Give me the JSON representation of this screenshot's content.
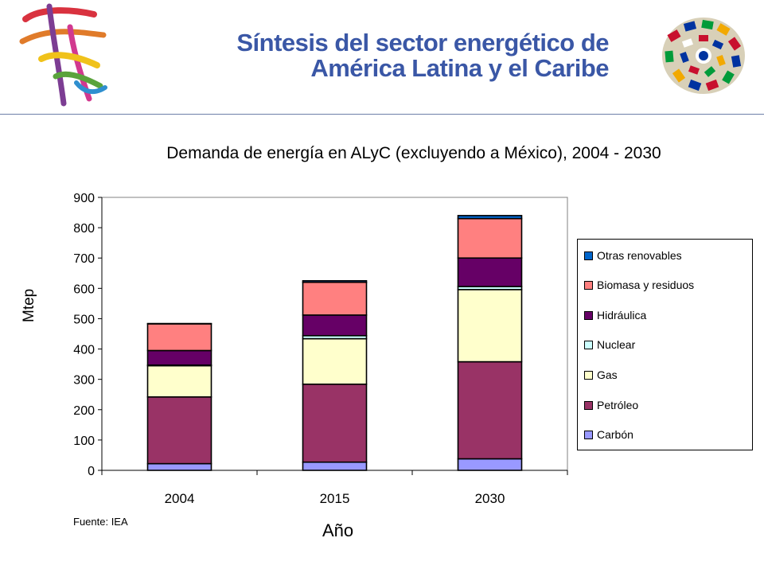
{
  "slide": {
    "title_line1": "Síntesis del sector energético de",
    "title_line2": "América Latina y el Caribe"
  },
  "source": "Fuente:  IEA",
  "chart_data": {
    "type": "bar",
    "stacked": true,
    "title": "Demanda de energía en ALyC (excluyendo a México), 2004 - 2030",
    "xlabel": "Año",
    "ylabel": "Mtep",
    "ylim": [
      0,
      900
    ],
    "yticks": [
      "0",
      "100",
      "200",
      "300",
      "400",
      "500",
      "600",
      "700",
      "800",
      "900"
    ],
    "categories": [
      "2004",
      "2015",
      "2030"
    ],
    "legend_position": "right",
    "series": [
      {
        "name": "Carbón",
        "color": "#9999ff",
        "values": [
          22,
          27,
          38
        ]
      },
      {
        "name": "Petróleo",
        "color": "#993366",
        "values": [
          220,
          257,
          320
        ]
      },
      {
        "name": "Gas",
        "color": "#ffffcc",
        "values": [
          103,
          150,
          238
        ]
      },
      {
        "name": "Nuclear",
        "color": "#ccffff",
        "values": [
          2,
          10,
          10
        ]
      },
      {
        "name": "Hidráulica",
        "color": "#660066",
        "values": [
          48,
          68,
          94
        ]
      },
      {
        "name": "Biomasa y residuos",
        "color": "#ff8080",
        "values": [
          88,
          108,
          130
        ]
      },
      {
        "name": "Otras renovables",
        "color": "#0066cc",
        "values": [
          1,
          5,
          10
        ]
      }
    ],
    "legend_order": [
      "Otras renovables",
      "Biomasa y residuos",
      "Hidráulica",
      "Nuclear",
      "Gas",
      "Petróleo",
      "Carbón"
    ]
  }
}
